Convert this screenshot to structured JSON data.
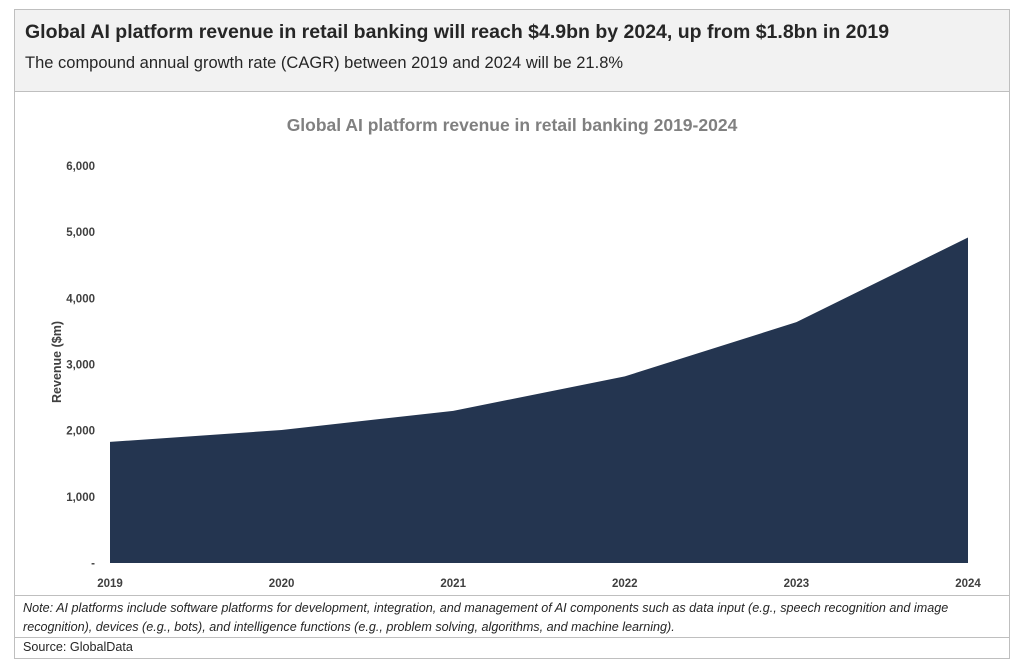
{
  "header": {
    "headline": "Global AI platform revenue in retail banking will reach $4.9bn by 2024, up from $1.8bn in 2019",
    "subheadline": "The compound annual growth rate (CAGR) between 2019 and 2024 will be 21.8%"
  },
  "chart_data": {
    "type": "area",
    "title": "Global AI platform revenue in retail banking 2019-2024",
    "xlabel": "",
    "ylabel": "Revenue ($m)",
    "categories": [
      "2019",
      "2020",
      "2021",
      "2022",
      "2023",
      "2024"
    ],
    "values": [
      1830,
      2010,
      2300,
      2820,
      3640,
      4920
    ],
    "ylim": [
      0,
      6000
    ],
    "yticks": [
      0,
      1000,
      2000,
      3000,
      4000,
      5000,
      6000
    ],
    "ytick_labels": [
      "-",
      "1,000",
      "2,000",
      "3,000",
      "4,000",
      "5,000",
      "6,000"
    ],
    "grid": false,
    "legend": "none",
    "fill_color": "#243550"
  },
  "note": "Note: AI platforms include software platforms for development, integration, and management of AI components such as data input (e.g., speech recognition and image recognition), devices (e.g., bots), and intelligence functions (e.g., problem solving, algorithms, and machine learning).",
  "source": "Source: GlobalData"
}
